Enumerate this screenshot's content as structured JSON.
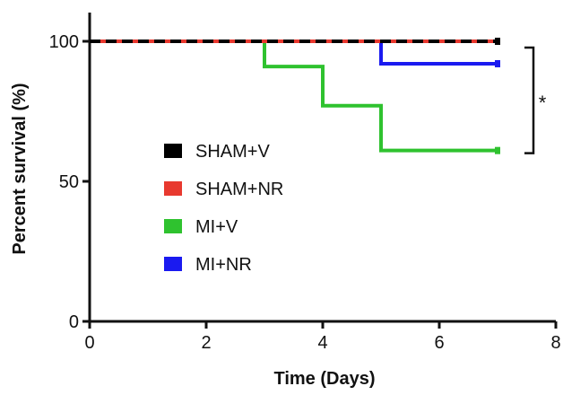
{
  "chart_data": {
    "type": "line",
    "step": true,
    "xlabel": "Time (Days)",
    "ylabel": "Percent survival (%)",
    "xlim": [
      0,
      8
    ],
    "ylim": [
      0,
      100
    ],
    "xticks": [
      0,
      2,
      4,
      6,
      8
    ],
    "yticks": [
      0,
      50,
      100
    ],
    "grid": false,
    "legend_position": "left-middle",
    "series": [
      {
        "name": "SHAM+V",
        "color": "#000000",
        "dashed": true,
        "x": [
          0,
          7
        ],
        "y": [
          100,
          100
        ]
      },
      {
        "name": "SHAM+NR",
        "color": "#e8392f",
        "dashed": false,
        "x": [
          0,
          7
        ],
        "y": [
          100,
          100
        ]
      },
      {
        "name": "MI+V",
        "color": "#2fc22f",
        "dashed": false,
        "x": [
          0,
          3,
          4,
          5,
          7
        ],
        "y": [
          100,
          91,
          77,
          61,
          61
        ]
      },
      {
        "name": "MI+NR",
        "color": "#1a1af0",
        "dashed": false,
        "x": [
          0,
          5,
          7
        ],
        "y": [
          100,
          92,
          92
        ]
      }
    ],
    "annotations": [
      {
        "text": "*",
        "bracket_y": [
          61,
          92
        ],
        "x": 7
      }
    ]
  }
}
